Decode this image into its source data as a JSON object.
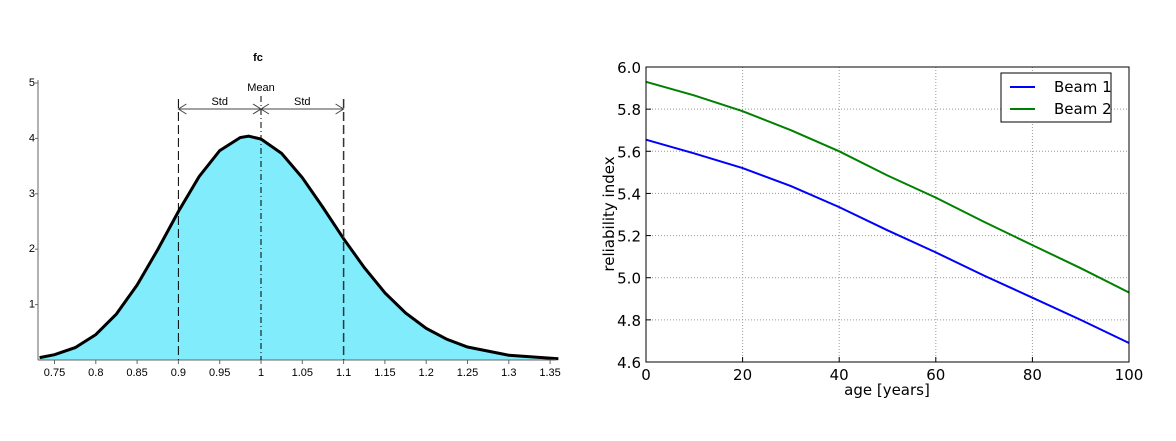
{
  "chart_data": [
    {
      "type": "area",
      "title": "fc",
      "xlabel": "",
      "ylabel": "",
      "xlim": [
        0.732,
        1.36
      ],
      "ylim": [
        0,
        5
      ],
      "x_ticks": [
        "0.75",
        "0.8",
        "0.85",
        "0.9",
        "0.95",
        "1",
        "1.05",
        "1.1",
        "1.15",
        "1.2",
        "1.25",
        "1.3",
        "1.35"
      ],
      "x_tick_values": [
        0.75,
        0.8,
        0.85,
        0.9,
        0.95,
        1,
        1.05,
        1.1,
        1.15,
        1.2,
        1.25,
        1.3,
        1.35
      ],
      "y_ticks": [
        "1",
        "2",
        "3",
        "4",
        "5"
      ],
      "y_tick_values": [
        1,
        2,
        3,
        4,
        5
      ],
      "grid": false,
      "fill_color": "#80ecfc",
      "line_color": "#000000",
      "x": [
        0.732,
        0.75,
        0.775,
        0.8,
        0.825,
        0.85,
        0.875,
        0.9,
        0.925,
        0.95,
        0.975,
        0.985,
        1.0,
        1.025,
        1.05,
        1.075,
        1.1,
        1.125,
        1.15,
        1.175,
        1.2,
        1.225,
        1.25,
        1.3,
        1.36
      ],
      "y": [
        0.044,
        0.096,
        0.224,
        0.458,
        0.831,
        1.354,
        1.994,
        2.68,
        3.31,
        3.78,
        4.016,
        4.04,
        3.99,
        3.73,
        3.29,
        2.755,
        2.19,
        1.667,
        1.213,
        0.849,
        0.572,
        0.373,
        0.235,
        0.085,
        0.022
      ],
      "annotations": {
        "mean_label": "Mean",
        "std_label_left": "Std",
        "std_label_right": "Std",
        "mean": 1.0,
        "std_lower": 0.9,
        "std_upper": 1.1
      }
    },
    {
      "type": "line",
      "title": "",
      "xlabel": "age [years]",
      "ylabel": "reliability index",
      "xlim": [
        0,
        100
      ],
      "ylim": [
        4.6,
        6.0
      ],
      "x_ticks": [
        "0",
        "20",
        "40",
        "60",
        "80",
        "100"
      ],
      "x_tick_values": [
        0,
        20,
        40,
        60,
        80,
        100
      ],
      "y_ticks": [
        "4.6",
        "4.8",
        "5.0",
        "5.2",
        "5.4",
        "5.6",
        "5.8",
        "6.0"
      ],
      "y_tick_values": [
        4.6,
        4.8,
        5.0,
        5.2,
        5.4,
        5.6,
        5.8,
        6.0
      ],
      "grid": true,
      "legend_position": "top-right",
      "x": [
        0,
        10,
        20,
        30,
        40,
        50,
        60,
        70,
        80,
        90,
        100
      ],
      "series": [
        {
          "name": "Beam 1",
          "color": "#0000ff",
          "values": [
            5.655,
            5.59,
            5.52,
            5.435,
            5.335,
            5.225,
            5.12,
            5.01,
            4.905,
            4.8,
            4.69
          ]
        },
        {
          "name": "Beam 2",
          "color": "#008000",
          "values": [
            5.93,
            5.865,
            5.79,
            5.7,
            5.6,
            5.485,
            5.38,
            5.265,
            5.155,
            5.045,
            4.93
          ]
        }
      ]
    }
  ]
}
